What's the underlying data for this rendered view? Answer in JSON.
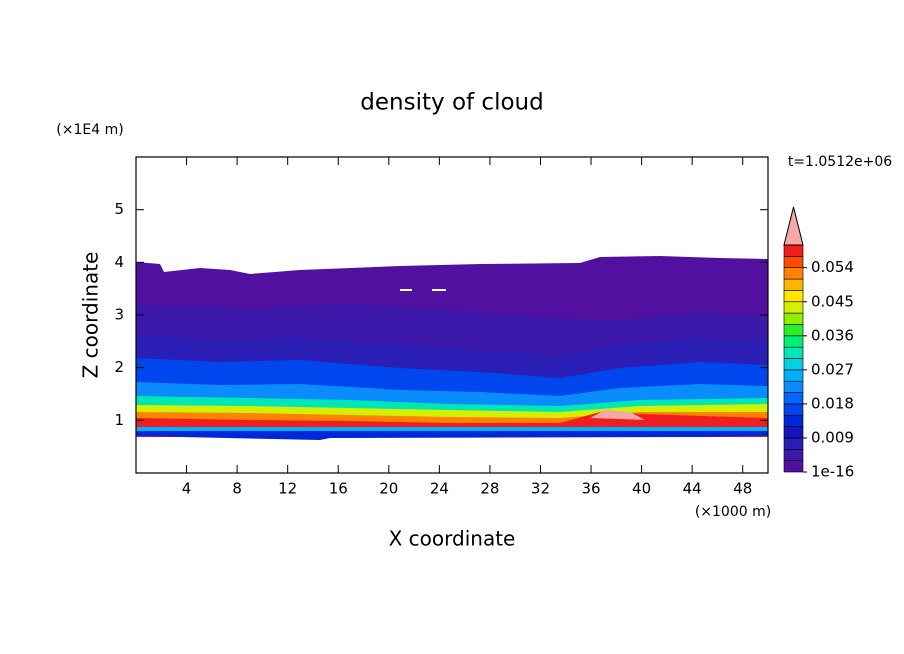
{
  "chart_data": {
    "type": "contour",
    "title": "density of cloud",
    "xlabel": "X coordinate",
    "ylabel": "Z coordinate",
    "x_unit_label": "(×1000 m)",
    "y_unit_label": "(×1E4 m)",
    "time_label": "t=1.0512e+06",
    "xlim": [
      0,
      50
    ],
    "xticks": [
      4,
      8,
      12,
      16,
      20,
      24,
      28,
      32,
      36,
      40,
      44,
      48
    ],
    "ylim": [
      0,
      6
    ],
    "yticks": [
      1,
      2,
      3,
      4,
      5
    ],
    "colorbar": {
      "lim": [
        1e-16,
        0.06
      ],
      "ticks": [
        1e-16,
        0.009,
        0.018,
        0.027,
        0.036,
        0.045,
        0.054
      ],
      "colors": [
        "#5210a0",
        "#3c18aa",
        "#2a1eb4",
        "#1414c0",
        "#0028d8",
        "#0046ee",
        "#0068ff",
        "#0a8cff",
        "#00b0ff",
        "#00d2e6",
        "#00e6b4",
        "#00f078",
        "#28f028",
        "#8cf000",
        "#d2f000",
        "#ffe600",
        "#ffb400",
        "#ff8200",
        "#ff4b00",
        "#f01e1e"
      ],
      "extend_color": "#f4a8a8"
    }
  }
}
